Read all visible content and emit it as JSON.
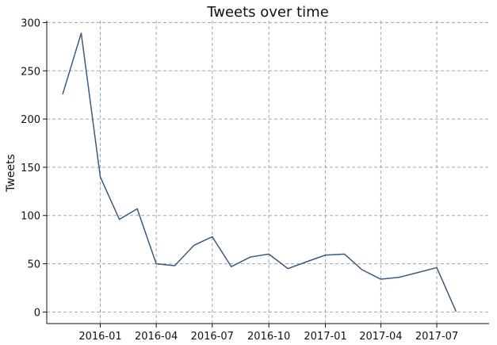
{
  "chart_data": {
    "type": "line",
    "title": "Tweets over time",
    "xlabel": "",
    "ylabel": "Tweets",
    "x": [
      "2015-11-01",
      "2015-12-01",
      "2016-01-01",
      "2016-02-01",
      "2016-03-01",
      "2016-04-01",
      "2016-05-01",
      "2016-06-01",
      "2016-07-01",
      "2016-08-01",
      "2016-09-01",
      "2016-10-01",
      "2016-11-01",
      "2016-12-01",
      "2017-01-01",
      "2017-02-01",
      "2017-03-01",
      "2017-04-01",
      "2017-05-01",
      "2017-06-01",
      "2017-07-01",
      "2017-08-01"
    ],
    "series": [
      {
        "values": [
          226,
          289,
          140,
          96,
          107,
          50,
          48,
          69,
          78,
          47,
          57,
          60,
          45,
          52,
          59,
          60,
          44,
          34,
          36,
          41,
          46,
          1
        ]
      }
    ],
    "ylim": [
      -12,
      302
    ],
    "xlim": [
      "2015-10-06",
      "2017-09-24"
    ],
    "x_ticks": [
      "2016-01",
      "2016-04",
      "2016-07",
      "2016-10",
      "2017-01",
      "2017-04",
      "2017-07"
    ],
    "y_ticks": [
      0,
      50,
      100,
      150,
      200,
      250,
      300
    ],
    "grid": true,
    "colors": {
      "line": "#3a5a7c",
      "grid": "#98a8b8"
    }
  }
}
